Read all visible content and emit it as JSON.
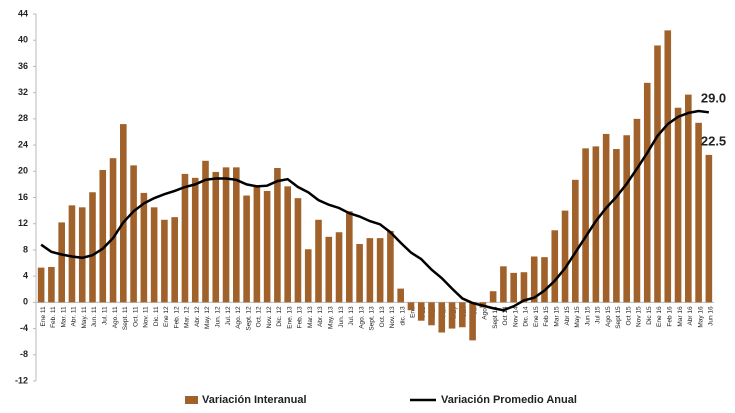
{
  "chart_data": {
    "type": "bar_line",
    "categories": [
      "Ene 11",
      "Feb. 11",
      "Mar. 11",
      "Abr. 11",
      "May. 11",
      "Jun. 11",
      "Jul. 11",
      "Ago. 11",
      "Sept. 11",
      "Oct. 11",
      "Nov. 11",
      "Dic. 11",
      "Ene 12",
      "Feb. 12",
      "Mar. 12",
      "Abr. 12",
      "May. 12",
      "Jun. 12",
      "Jul. 12",
      "Ago. 12",
      "Sept. 12",
      "Oct. 12",
      "Nov. 12",
      "Dic. 12",
      "Ene. 13",
      "Feb. 13",
      "Mar. 13",
      "Abr. 13",
      "May. 13",
      "Jun. 13",
      "Jul. 13",
      "Ago. 13",
      "Sept. 13",
      "Oct. 13",
      "Nov. 13",
      "dic. 13",
      "Ene",
      "Feb",
      "Mar",
      "Abr",
      "May",
      "Jun",
      "Jul",
      "Ago.",
      "Sept 14",
      "Oct 14",
      "Nov 14",
      "Dic. 14",
      "Ene 15",
      "Feb 15",
      "Mar 15",
      "Abr 15",
      "May 15",
      "Jun 15",
      "Jul 15",
      "Ago 15",
      "Sept 15",
      "Oct 15",
      "Nov 15",
      "Dic 15",
      "Ene 16",
      "Feb 16",
      "Mar 16",
      "Abr 16",
      "May 16",
      "Jun 16"
    ],
    "series": [
      {
        "name": "Variación Interanual",
        "kind": "bar",
        "color": "#a0622a",
        "values": [
          5.3,
          5.4,
          12.2,
          14.8,
          14.5,
          16.8,
          20.2,
          22.0,
          27.2,
          20.9,
          16.7,
          14.5,
          12.6,
          13.0,
          19.6,
          19.0,
          21.6,
          19.9,
          20.6,
          20.6,
          16.3,
          17.6,
          17.0,
          20.5,
          17.7,
          15.9,
          8.1,
          12.6,
          10.0,
          10.7,
          13.9,
          8.9,
          9.8,
          9.8,
          10.9,
          2.1,
          -1.2,
          -2.8,
          -3.5,
          -4.6,
          -4.0,
          -3.8,
          -5.8,
          -0.8,
          1.7,
          5.5,
          4.5,
          4.6,
          7.0,
          6.9,
          11.0,
          14.0,
          18.7,
          23.5,
          23.8,
          25.7,
          23.4,
          25.5,
          28.0,
          33.5,
          39.2,
          41.5,
          29.7,
          31.7,
          27.4,
          22.5
        ],
        "value_labels": [
          null,
          null,
          null,
          null,
          null,
          null,
          null,
          null,
          null,
          null,
          null,
          null,
          null,
          null,
          null,
          null,
          null,
          null,
          null,
          null,
          null,
          null,
          null,
          null,
          null,
          null,
          null,
          null,
          null,
          null,
          null,
          null,
          null,
          null,
          null,
          null,
          null,
          null,
          null,
          null,
          null,
          null,
          null,
          null,
          null,
          null,
          null,
          null,
          null,
          null,
          null,
          null,
          null,
          null,
          null,
          null,
          null,
          null,
          null,
          null,
          null,
          null,
          null,
          null,
          null,
          "22.5"
        ]
      },
      {
        "name": "Variación Promedio Anual",
        "kind": "line",
        "color": "#000000",
        "values": [
          8.8,
          7.7,
          7.3,
          7.0,
          6.8,
          7.2,
          8.2,
          9.8,
          12.2,
          13.9,
          15.1,
          15.9,
          16.5,
          17.0,
          17.6,
          18.0,
          18.7,
          18.9,
          18.9,
          18.7,
          18.0,
          17.7,
          17.8,
          18.5,
          18.8,
          17.6,
          16.8,
          15.6,
          14.9,
          14.4,
          13.6,
          13.1,
          12.4,
          11.9,
          10.7,
          9.1,
          7.6,
          6.6,
          5.0,
          3.7,
          2.1,
          0.6,
          -0.1,
          -0.5,
          -0.9,
          -1.2,
          -0.6,
          0.3,
          0.7,
          1.8,
          3.3,
          5.2,
          7.6,
          10.0,
          12.4,
          14.4,
          16.1,
          18.1,
          20.4,
          22.8,
          25.4,
          27.2,
          28.3,
          28.9,
          29.2,
          29.0
        ],
        "value_labels": [
          null,
          null,
          null,
          null,
          null,
          null,
          null,
          null,
          null,
          null,
          null,
          null,
          null,
          null,
          null,
          null,
          null,
          null,
          null,
          null,
          null,
          null,
          null,
          null,
          null,
          null,
          null,
          null,
          null,
          null,
          null,
          null,
          null,
          null,
          null,
          null,
          null,
          null,
          null,
          null,
          null,
          null,
          null,
          null,
          null,
          null,
          null,
          null,
          null,
          null,
          null,
          null,
          null,
          null,
          null,
          null,
          null,
          null,
          null,
          null,
          null,
          null,
          null,
          null,
          null,
          "29.0"
        ]
      }
    ],
    "ylim": [
      -12,
      44
    ],
    "yticks": [
      -12,
      -8,
      -4,
      0,
      4,
      8,
      12,
      16,
      20,
      24,
      28,
      32,
      36,
      40,
      44
    ],
    "grid": false,
    "legend": "bottom"
  }
}
